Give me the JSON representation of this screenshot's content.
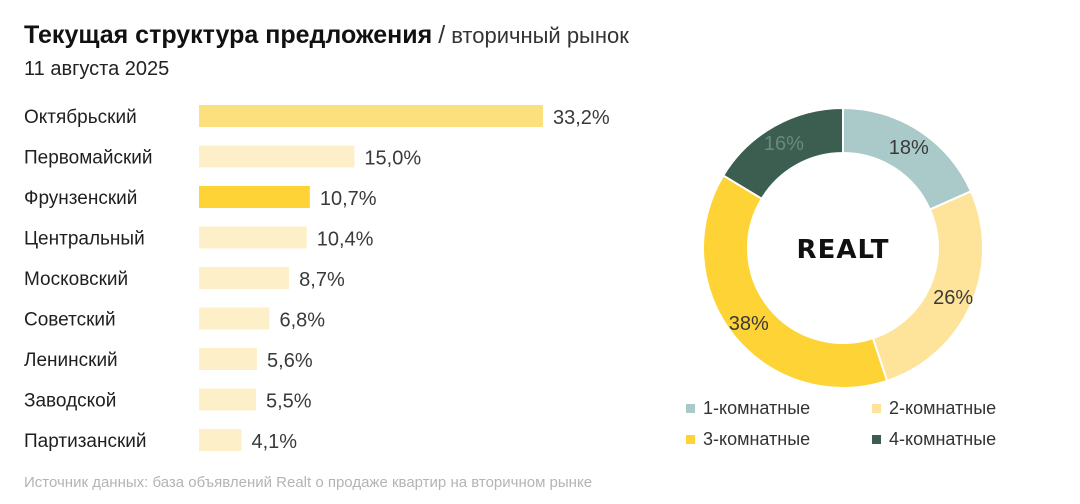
{
  "header": {
    "title": "Текущая структура предложения",
    "separator": "/",
    "subtitle": "вторичный рынок",
    "date": "11 августа 2025"
  },
  "source": "Источник данных: база объявлений Realt о продаже квартир на вторичном рынке",
  "logo": {
    "text": "REALT"
  },
  "chart_data": [
    {
      "type": "bar",
      "orientation": "horizontal",
      "categories": [
        "Октябрьский",
        "Первомайский",
        "Фрунзенский",
        "Центральный",
        "Московский",
        "Советский",
        "Ленинский",
        "Заводской",
        "Партизанский"
      ],
      "values": [
        33.2,
        15.0,
        10.7,
        10.4,
        8.7,
        6.8,
        5.6,
        5.5,
        4.1
      ],
      "value_labels": [
        "33,2%",
        "15,0%",
        "10,7%",
        "10,4%",
        "8,7%",
        "6,8%",
        "5,6%",
        "5,5%",
        "4,1%"
      ],
      "bar_colors": [
        "#fce07e",
        "#fdf0c9",
        "#fdd335",
        "#fdf0c9",
        "#fdf0c9",
        "#fdf0c9",
        "#fdf0c9",
        "#fdf0c9",
        "#fdf0c9"
      ],
      "xlim": [
        0,
        33.2
      ]
    },
    {
      "type": "pie",
      "donut": true,
      "categories": [
        "1-комнатные",
        "2-комнатные",
        "3-комнатные",
        "4-комнатные"
      ],
      "values": [
        18,
        26,
        38,
        16
      ],
      "value_labels": [
        "18%",
        "26%",
        "38%",
        "16%"
      ],
      "colors": [
        "#a9cac8",
        "#fde49a",
        "#fdd335",
        "#3b5e50"
      ],
      "label_colors": [
        "#3a3a3a",
        "#3a3a3a",
        "#3a3a3a",
        "#6a8a80"
      ],
      "legend_position": "bottom"
    }
  ]
}
